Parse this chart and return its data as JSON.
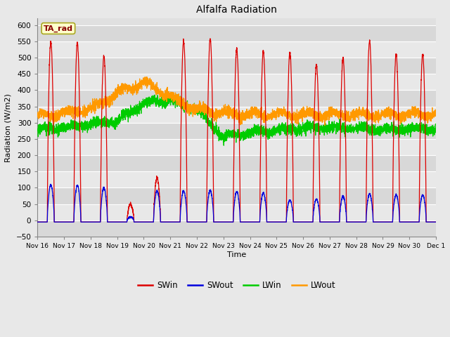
{
  "title": "Alfalfa Radiation",
  "xlabel": "Time",
  "ylabel": "Radiation (W/m2)",
  "ylim": [
    -50,
    620
  ],
  "background_color": "#e8e8e8",
  "plot_bg_color": "#e0e0e0",
  "grid_color": "white",
  "legend_entries": [
    "SWin",
    "SWout",
    "LWin",
    "LWout"
  ],
  "annotation_text": "TA_rad",
  "annotation_bg": "#ffffcc",
  "annotation_border": "#aaa820",
  "annotation_text_color": "#880000",
  "line_colors": {
    "SWin": "#dd0000",
    "SWout": "#0000dd",
    "LWin": "#00cc00",
    "LWout": "#ff9900"
  },
  "yticks": [
    -50,
    0,
    50,
    100,
    150,
    200,
    250,
    300,
    350,
    400,
    450,
    500,
    550,
    600
  ],
  "num_days": 15,
  "points_per_day": 288,
  "tick_labels": [
    "Nov 16",
    "Nov 17",
    "Nov 18",
    "Nov 19",
    "Nov 20",
    "Nov 21",
    "Nov 22",
    "Nov 23",
    "Nov 24",
    "Nov 25",
    "Nov 26",
    "Nov 27",
    "Nov 28",
    "Nov 29",
    "Nov 30",
    "Dec 1"
  ]
}
